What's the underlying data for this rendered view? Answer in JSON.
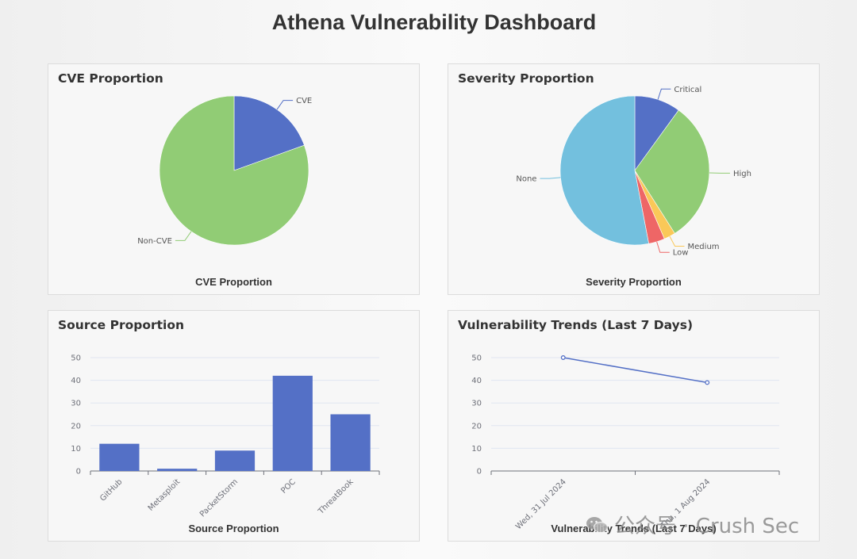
{
  "page": {
    "title": "Athena Vulnerability Dashboard"
  },
  "colors": {
    "blue": "#5470c6",
    "green": "#91cc75",
    "yellow": "#fac858",
    "red": "#ee6666",
    "cyan": "#73c0de"
  },
  "cards": {
    "cve": {
      "title": "CVE Proportion",
      "caption": "CVE Proportion"
    },
    "severity": {
      "title": "Severity Proportion",
      "caption": "Severity Proportion"
    },
    "source": {
      "title": "Source Proportion",
      "caption": "Source Proportion"
    },
    "trends": {
      "title": "Vulnerability Trends (Last 7 Days)",
      "caption": "Vulnerability Trends (Last 7 Days)"
    }
  },
  "chart_data": [
    {
      "id": "cve",
      "type": "pie",
      "title": "CVE Proportion",
      "slices": [
        {
          "name": "CVE",
          "value": 19.5,
          "color": "#5470c6"
        },
        {
          "name": "Non-CVE",
          "value": 80.5,
          "color": "#91cc75"
        }
      ]
    },
    {
      "id": "severity",
      "type": "pie",
      "title": "Severity Proportion",
      "slices": [
        {
          "name": "Critical",
          "value": 10,
          "color": "#5470c6"
        },
        {
          "name": "High",
          "value": 31,
          "color": "#91cc75"
        },
        {
          "name": "Medium",
          "value": 2.5,
          "color": "#fac858"
        },
        {
          "name": "Low",
          "value": 3.5,
          "color": "#ee6666"
        },
        {
          "name": "None",
          "value": 53,
          "color": "#73c0de"
        }
      ]
    },
    {
      "id": "source",
      "type": "bar",
      "title": "Source Proportion",
      "categories": [
        "GitHub",
        "Metasploit",
        "PacketStorm",
        "POC",
        "ThreatBook"
      ],
      "values": [
        12,
        1,
        9,
        42,
        25
      ],
      "ylim": [
        0,
        50
      ],
      "yticks": [
        0,
        10,
        20,
        30,
        40,
        50
      ],
      "color": "#5470c6",
      "grid": true
    },
    {
      "id": "trends",
      "type": "line",
      "title": "Vulnerability Trends (Last 7 Days)",
      "x": [
        "Wed, 31 Jul 2024",
        "Thu, 1 Aug 2024"
      ],
      "values": [
        50,
        39
      ],
      "ylim": [
        0,
        50
      ],
      "yticks": [
        0,
        10,
        20,
        30,
        40,
        50
      ],
      "color": "#5470c6",
      "grid": true
    }
  ],
  "watermark": {
    "text": "公众号 · Crush Sec"
  }
}
